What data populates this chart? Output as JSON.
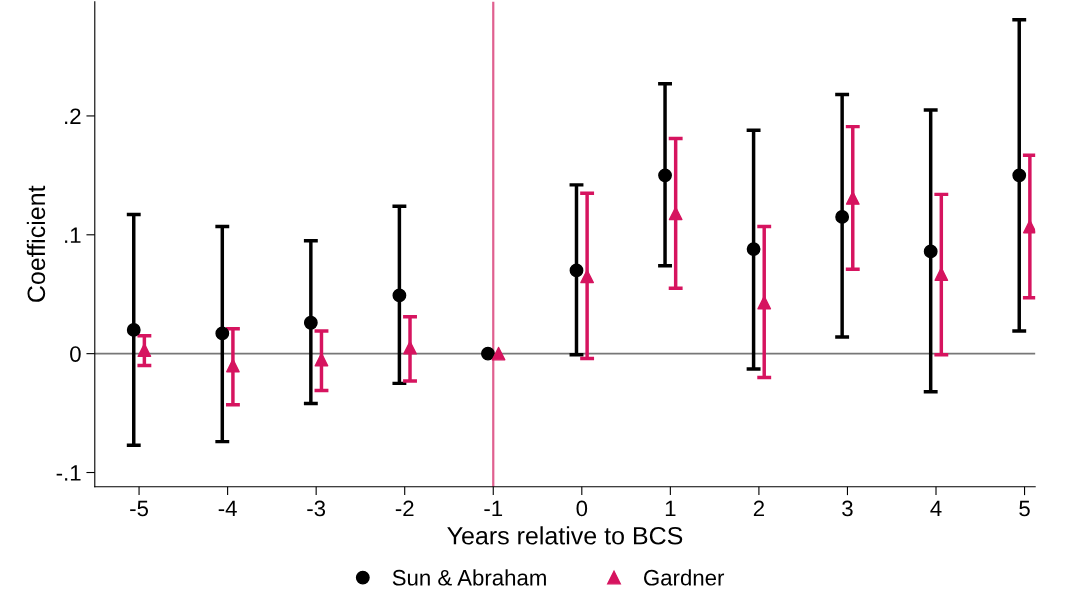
{
  "chart_data": {
    "type": "scatter",
    "xlabel": "Years relative to BCS",
    "ylabel": "Coefficient",
    "xlim": [
      -5.5,
      5.12
    ],
    "xticks": [
      -5,
      -4,
      -3,
      -2,
      -1,
      0,
      1,
      2,
      3,
      4,
      5
    ],
    "ylim": [
      -0.112,
      0.296
    ],
    "yticks": [
      {
        "value": -0.1,
        "label": "-.1"
      },
      {
        "value": 0,
        "label": "0"
      },
      {
        "value": 0.1,
        "label": ".1"
      },
      {
        "value": 0.2,
        "label": ".2"
      }
    ],
    "series": [
      {
        "name": "Sun & Abraham",
        "color": "#000000",
        "marker": "circle",
        "x": [
          -5.06,
          -4.06,
          -3.06,
          -2.06,
          -1.06,
          -0.06,
          0.94,
          1.94,
          2.94,
          3.94,
          4.94
        ],
        "values": [
          0.02,
          0.017,
          0.026,
          0.049,
          0,
          0.07,
          0.15,
          0.088,
          0.115,
          0.086,
          0.15
        ],
        "errors": [
          [
            -0.077,
            0.117
          ],
          [
            -0.074,
            0.107
          ],
          [
            -0.042,
            0.095
          ],
          [
            -0.025,
            0.124
          ],
          null,
          [
            -0.001,
            0.142
          ],
          [
            0.074,
            0.227
          ],
          [
            -0.013,
            0.188
          ],
          [
            0.014,
            0.218
          ],
          [
            -0.032,
            0.205
          ],
          [
            0.019,
            0.281
          ]
        ]
      },
      {
        "name": "Gardner",
        "color": "#d6145f",
        "marker": "triangle",
        "x": [
          -4.94,
          -3.94,
          -2.94,
          -1.94,
          -0.94,
          0.06,
          1.06,
          2.06,
          3.06,
          4.06,
          5.06
        ],
        "values": [
          0.003,
          -0.01,
          -0.005,
          0.005,
          0,
          0.065,
          0.118,
          0.043,
          0.131,
          0.067,
          0.107
        ],
        "errors": [
          [
            -0.01,
            0.015
          ],
          [
            -0.043,
            0.021
          ],
          [
            -0.031,
            0.019
          ],
          [
            -0.023,
            0.031
          ],
          null,
          [
            -0.004,
            0.135
          ],
          [
            0.055,
            0.181
          ],
          [
            -0.02,
            0.107
          ],
          [
            0.071,
            0.191
          ],
          [
            -0.001,
            0.134
          ],
          [
            0.047,
            0.167
          ]
        ]
      }
    ],
    "ref_lines": [
      {
        "axis": "y",
        "value": 0,
        "color": "#777777"
      },
      {
        "axis": "x",
        "value": -1,
        "color": "#e0608f"
      }
    ],
    "grid": false,
    "legend": "bottom"
  }
}
